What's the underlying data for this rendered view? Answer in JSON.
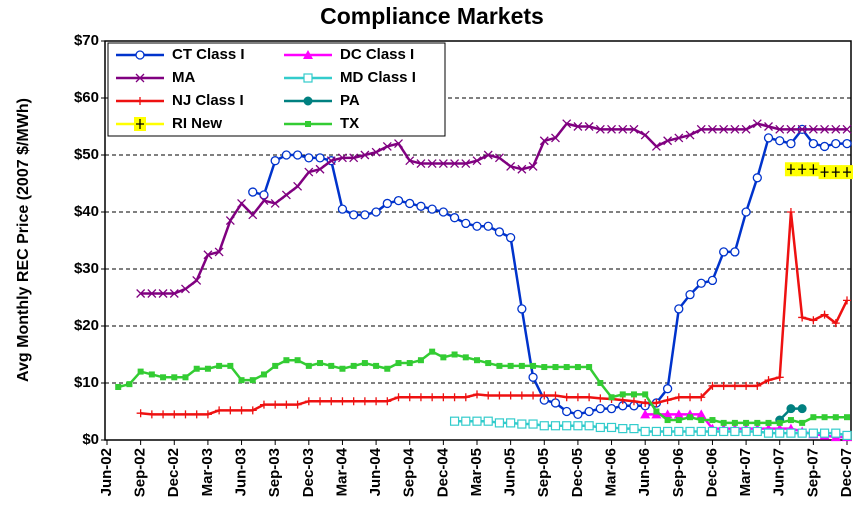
{
  "chart_data": {
    "type": "line",
    "title": "Compliance Markets",
    "y_label": "Avg Monthly REC Price (2007 $/MWh)",
    "ylim": [
      0,
      70
    ],
    "yticks": [
      {
        "value": 0,
        "label": "$0"
      },
      {
        "value": 10,
        "label": "$10"
      },
      {
        "value": 20,
        "label": "$20"
      },
      {
        "value": 30,
        "label": "$30"
      },
      {
        "value": 40,
        "label": "$40"
      },
      {
        "value": 50,
        "label": "$50"
      },
      {
        "value": 60,
        "label": "$60"
      },
      {
        "value": 70,
        "label": "$70"
      }
    ],
    "grid": true,
    "legend": "top-left",
    "categories": [
      "Jun-02",
      null,
      null,
      "Sep-02",
      null,
      null,
      "Dec-02",
      null,
      null,
      "Mar-03",
      null,
      null,
      "Jun-03",
      null,
      null,
      "Sep-03",
      null,
      null,
      "Dec-03",
      null,
      null,
      "Mar-04",
      null,
      null,
      "Jun-04",
      null,
      null,
      "Sep-04",
      null,
      null,
      "Dec-04",
      null,
      null,
      "Mar-05",
      null,
      null,
      "Jun-05",
      null,
      null,
      "Sep-05",
      null,
      null,
      "Dec-05",
      null,
      null,
      "Mar-06",
      null,
      null,
      "Jun-06",
      null,
      null,
      "Sep-06",
      null,
      null,
      "Dec-06",
      null,
      null,
      "Mar-07",
      null,
      null,
      "Jun-07",
      null,
      null,
      "Sep-07",
      null,
      null,
      "Dec-07"
    ],
    "series": [
      {
        "name": "CT Class I",
        "color": "#0033cc",
        "marker": "circle-open",
        "values": [
          null,
          null,
          null,
          null,
          null,
          null,
          null,
          null,
          null,
          null,
          null,
          null,
          null,
          43.5,
          43,
          49,
          50,
          50,
          49.5,
          49.5,
          49,
          40.5,
          39.5,
          39.5,
          40,
          41.5,
          42,
          41.5,
          41,
          40.5,
          40,
          39,
          38,
          37.5,
          37.5,
          36.5,
          35.5,
          23,
          11,
          7,
          6.5,
          5,
          4.5,
          5,
          5.5,
          5.5,
          6,
          6,
          6,
          6.5,
          9,
          23,
          25.5,
          27.5,
          28,
          33,
          33,
          40,
          46,
          53,
          52.5,
          52,
          54.5,
          52,
          51.5,
          52,
          52
        ]
      },
      {
        "name": "DC Class I",
        "color": "#ff00ff",
        "marker": "triangle",
        "values": [
          null,
          null,
          null,
          null,
          null,
          null,
          null,
          null,
          null,
          null,
          null,
          null,
          null,
          null,
          null,
          null,
          null,
          null,
          null,
          null,
          null,
          null,
          null,
          null,
          null,
          null,
          null,
          null,
          null,
          null,
          null,
          null,
          null,
          null,
          null,
          null,
          null,
          null,
          null,
          null,
          null,
          null,
          null,
          null,
          null,
          null,
          null,
          null,
          4.5,
          4.5,
          4.5,
          4.5,
          4.5,
          4.5,
          2,
          2,
          2,
          2,
          2,
          2,
          2,
          2,
          1.5,
          1,
          0.8,
          0.5,
          0.5
        ]
      },
      {
        "name": "MA",
        "color": "#800080",
        "marker": "x",
        "values": [
          null,
          null,
          null,
          25.7,
          25.7,
          25.7,
          25.7,
          26.5,
          28,
          32.5,
          33,
          38.5,
          41.5,
          39.5,
          42,
          41.5,
          43,
          44.5,
          47,
          47.5,
          49,
          49.5,
          49.5,
          50,
          50.5,
          51.5,
          52,
          49,
          48.5,
          48.5,
          48.5,
          48.5,
          48.5,
          49,
          50,
          49.5,
          48,
          47.5,
          48,
          52.5,
          53,
          55.5,
          55,
          55,
          54.5,
          54.5,
          54.5,
          54.5,
          53.5,
          51.5,
          52.5,
          53,
          53.5,
          54.5,
          54.5,
          54.5,
          54.5,
          54.5,
          55.5,
          55,
          54.5,
          54.5,
          54.5,
          54.5,
          54.5,
          54.5,
          54.5
        ]
      },
      {
        "name": "MD Class I",
        "color": "#33cccc",
        "marker": "square-open",
        "values": [
          null,
          null,
          null,
          null,
          null,
          null,
          null,
          null,
          null,
          null,
          null,
          null,
          null,
          null,
          null,
          null,
          null,
          null,
          null,
          null,
          null,
          null,
          null,
          null,
          null,
          null,
          null,
          null,
          null,
          null,
          null,
          3.3,
          3.3,
          3.3,
          3.3,
          3,
          3,
          2.8,
          2.8,
          2.5,
          2.5,
          2.5,
          2.5,
          2.5,
          2.2,
          2.2,
          2,
          2,
          1.5,
          1.5,
          1.5,
          1.5,
          1.5,
          1.5,
          1.5,
          1.5,
          1.5,
          1.5,
          1.5,
          1.2,
          1.2,
          1.2,
          1.2,
          1.2,
          1.2,
          1.2,
          0.8
        ]
      },
      {
        "name": "NJ Class I",
        "color": "#ee1111",
        "marker": "plus",
        "values": [
          null,
          null,
          null,
          4.7,
          4.5,
          4.5,
          4.5,
          4.5,
          4.5,
          4.5,
          5.2,
          5.2,
          5.2,
          5.2,
          6.2,
          6.2,
          6.2,
          6.2,
          6.8,
          6.8,
          6.8,
          6.8,
          6.8,
          6.8,
          6.8,
          6.8,
          7.5,
          7.5,
          7.5,
          7.5,
          7.5,
          7.5,
          7.5,
          8,
          7.8,
          7.8,
          7.8,
          7.8,
          7.8,
          7.8,
          7.8,
          7.5,
          7.5,
          7.5,
          7.3,
          7.2,
          7,
          6.8,
          6.5,
          6.5,
          7,
          7.5,
          7.5,
          7.5,
          9.5,
          9.5,
          9.5,
          9.5,
          9.5,
          10.5,
          11,
          40,
          21.5,
          21,
          22,
          20.5,
          24.5
        ]
      },
      {
        "name": "PA",
        "color": "#008080",
        "marker": "circle",
        "values": [
          null,
          null,
          null,
          null,
          null,
          null,
          null,
          null,
          null,
          null,
          null,
          null,
          null,
          null,
          null,
          null,
          null,
          null,
          null,
          null,
          null,
          null,
          null,
          null,
          null,
          null,
          null,
          null,
          null,
          null,
          null,
          null,
          null,
          null,
          null,
          null,
          null,
          null,
          null,
          null,
          null,
          null,
          null,
          null,
          null,
          null,
          null,
          null,
          null,
          null,
          null,
          null,
          null,
          null,
          null,
          null,
          null,
          null,
          null,
          null,
          3.5,
          5.5,
          5.5,
          null,
          null,
          null,
          null
        ]
      },
      {
        "name": "RI New",
        "color": "#ffff00",
        "marker": "plus-box",
        "values": [
          null,
          null,
          null,
          null,
          null,
          null,
          null,
          null,
          null,
          null,
          null,
          null,
          null,
          null,
          null,
          null,
          null,
          null,
          null,
          null,
          null,
          null,
          null,
          null,
          null,
          null,
          null,
          null,
          null,
          null,
          null,
          null,
          null,
          null,
          null,
          null,
          null,
          null,
          null,
          null,
          null,
          null,
          null,
          null,
          null,
          null,
          null,
          null,
          null,
          null,
          null,
          null,
          null,
          null,
          null,
          null,
          null,
          null,
          null,
          null,
          null,
          47.5,
          47.5,
          47.5,
          47,
          47,
          47
        ]
      },
      {
        "name": "TX",
        "color": "#33cc33",
        "marker": "square",
        "values": [
          null,
          9.3,
          9.8,
          12,
          11.5,
          11,
          11,
          11,
          12.5,
          12.5,
          13,
          13,
          10.5,
          10.5,
          11.5,
          13,
          14,
          14,
          13,
          13.5,
          13,
          12.5,
          13,
          13.5,
          13,
          12.5,
          13.5,
          13.5,
          14,
          15.5,
          14.5,
          15,
          14.5,
          14,
          13.5,
          13,
          13,
          13,
          13,
          12.8,
          12.8,
          12.8,
          12.8,
          12.8,
          10,
          7.5,
          8,
          8,
          8,
          5,
          3.5,
          3.5,
          4,
          3.5,
          3.5,
          3,
          3,
          3,
          3,
          3,
          3,
          3.5,
          3,
          4,
          4,
          4,
          4
        ]
      }
    ]
  }
}
